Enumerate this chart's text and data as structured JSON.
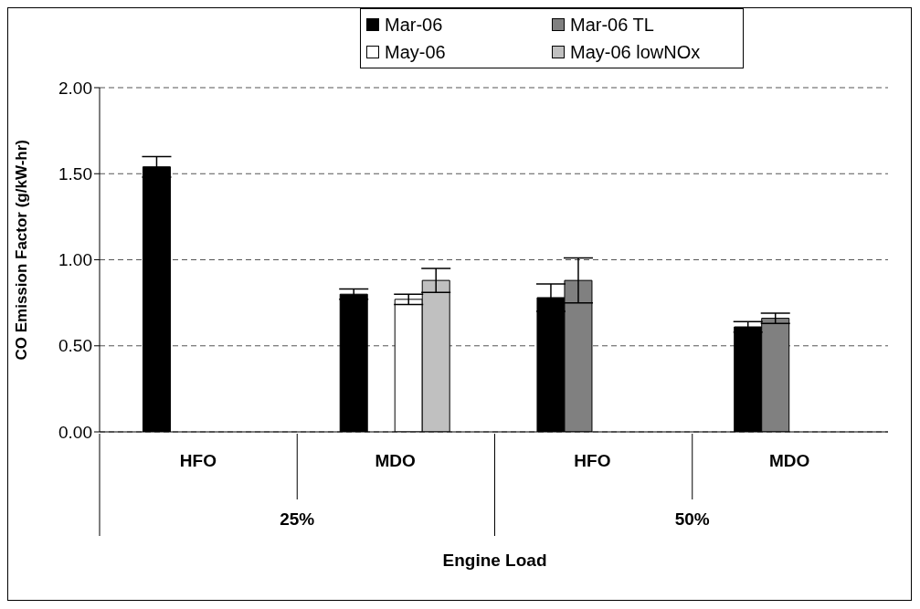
{
  "chart_data": {
    "type": "bar",
    "xlabel": "Engine Load",
    "ylabel": "CO Emission Factor (g/kW-hr)",
    "categories": [
      "HFO",
      "MDO",
      "HFO",
      "MDO"
    ],
    "series": [
      {
        "name": "Mar-06",
        "color": "#000000",
        "values": [
          1.54,
          0.8,
          0.78,
          0.61
        ],
        "errors": [
          0.06,
          0.03,
          0.08,
          0.03
        ]
      },
      {
        "name": "Mar-06 TL",
        "color": "#808080",
        "values": [
          null,
          null,
          0.88,
          0.66
        ],
        "errors": [
          null,
          null,
          0.13,
          0.03
        ]
      },
      {
        "name": "May-06",
        "color": "#ffffff",
        "values": [
          null,
          0.77,
          null,
          null
        ],
        "errors": [
          null,
          0.03,
          null,
          null
        ]
      },
      {
        "name": "May-06 lowNOx",
        "color": "#c0c0c0",
        "values": [
          null,
          0.88,
          null,
          null
        ],
        "errors": [
          null,
          0.07,
          null,
          null
        ]
      }
    ],
    "ylim": [
      0,
      2
    ],
    "yticks": [
      {
        "value": 0,
        "label": "0.00"
      },
      {
        "value": 0.5,
        "label": "0.50"
      },
      {
        "value": 1,
        "label": "1.00"
      },
      {
        "value": 1.5,
        "label": "1.50"
      },
      {
        "value": 2,
        "label": "2.00"
      }
    ],
    "grid": "y",
    "legend": "top",
    "annotations": [
      "25%",
      "50%"
    ]
  }
}
